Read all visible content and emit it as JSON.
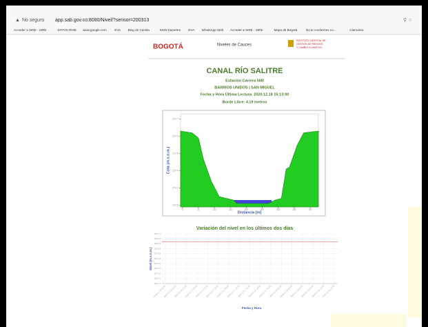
{
  "browser": {
    "security": "No seguro",
    "url": "app.sab.gov.co:8080/Nivel/?sensor=200313",
    "bookmarks": [
      "Acceder a SIRE - SIRE",
      "DATOS RHIE",
      "www.google.com",
      "EVA",
      "Blog de Camila",
      "MSN Deportes",
      "EVA",
      "WhatsApp Web",
      "Acceder a SIRE - SIRE",
      "Mapa de Bogotá",
      "No te conformes co...",
      "Claroview"
    ]
  },
  "header": {
    "logo": "BOGOTÁ",
    "title": "Niveles de Cauces",
    "institute": [
      "INSTITUTO DISTRITAL DE",
      "GESTIÓN DE RIESGOS",
      "Y CAMBIO CLIMÁTICO"
    ]
  },
  "station": {
    "name": "CANAL RÍO SALITRE",
    "lines": [
      "Estación Carrera 56B",
      "BARRIOS UNIDOS | SAN MIGUEL",
      "Fecha y Hora Última Lectura: 2020.12.18 15:13:00",
      "Borde Libre: 4.19 metros"
    ]
  },
  "chart_data": [
    {
      "type": "area",
      "xlabel": "Distancia [m]",
      "ylabel": "Cota (m.s.n.m.)",
      "x": [
        -0.6,
        3,
        5,
        6.5,
        9,
        11.5,
        16,
        17,
        27,
        29,
        31,
        32.5,
        33.5,
        36,
        38,
        42.6
      ],
      "values": [
        2576.3,
        2576.2,
        2575.9,
        2574.7,
        2573.4,
        2572.5,
        2572.3,
        2572.1,
        2572.1,
        2572.3,
        2572.4,
        2574.1,
        2574.2,
        2575.5,
        2576.2,
        2576.3
      ],
      "color": "#22cc22",
      "water_level": 2572.3,
      "water_x": [
        16,
        28
      ],
      "water_color": "#4444dd",
      "xlim": [
        -0.6,
        42.6
      ],
      "xticks": [
        0,
        5,
        10,
        15,
        20,
        25,
        30,
        35,
        40
      ],
      "ylim": [
        2571.9,
        2577.3
      ],
      "yticks": [
        2572,
        2573,
        2574,
        2575,
        2576,
        2577
      ]
    },
    {
      "type": "line",
      "title": "Variación del nivel en los últimos dos días",
      "xlabel": "Fecha y Hora",
      "ylabel": "Nivel (m.s.n.m.)",
      "categories": [
        "2020-12-16 15:00",
        "2020-12-16 18:00",
        "2020-12-16 21:00",
        "2020-12-17 00:00",
        "2020-12-17 03:00",
        "2020-12-17 06:00",
        "2020-12-17 09:00",
        "2020-12-17 12:00",
        "2020-12-17 15:00",
        "2020-12-17 18:00",
        "2020-12-17 21:00",
        "2020-12-18 00:00",
        "2020-12-18 03:00",
        "2020-12-18 06:00",
        "2020-12-18 09:00",
        "2020-12-18 12:00",
        "2020-12-18 15:00"
      ],
      "threshold": 2576.2,
      "threshold_color": "#f08080",
      "grid": true,
      "ylim": [
        2572,
        2577
      ],
      "yticks": [
        {
          "value": 2572,
          "label": "2572.0"
        },
        {
          "value": 2572.5,
          "label": "2572.5"
        },
        {
          "value": 2573,
          "label": "2573.0"
        },
        {
          "value": 2573.5,
          "label": "2573.5"
        },
        {
          "value": 2574,
          "label": "2574.0"
        },
        {
          "value": 2574.5,
          "label": "2574.5"
        },
        {
          "value": 2575,
          "label": "2575.0"
        },
        {
          "value": 2575.5,
          "label": "2575.5"
        },
        {
          "value": 2576,
          "label": "2576.0"
        },
        {
          "value": 2576.5,
          "label": "2576.5"
        },
        {
          "value": 2577,
          "label": "2577.0"
        }
      ]
    }
  ]
}
